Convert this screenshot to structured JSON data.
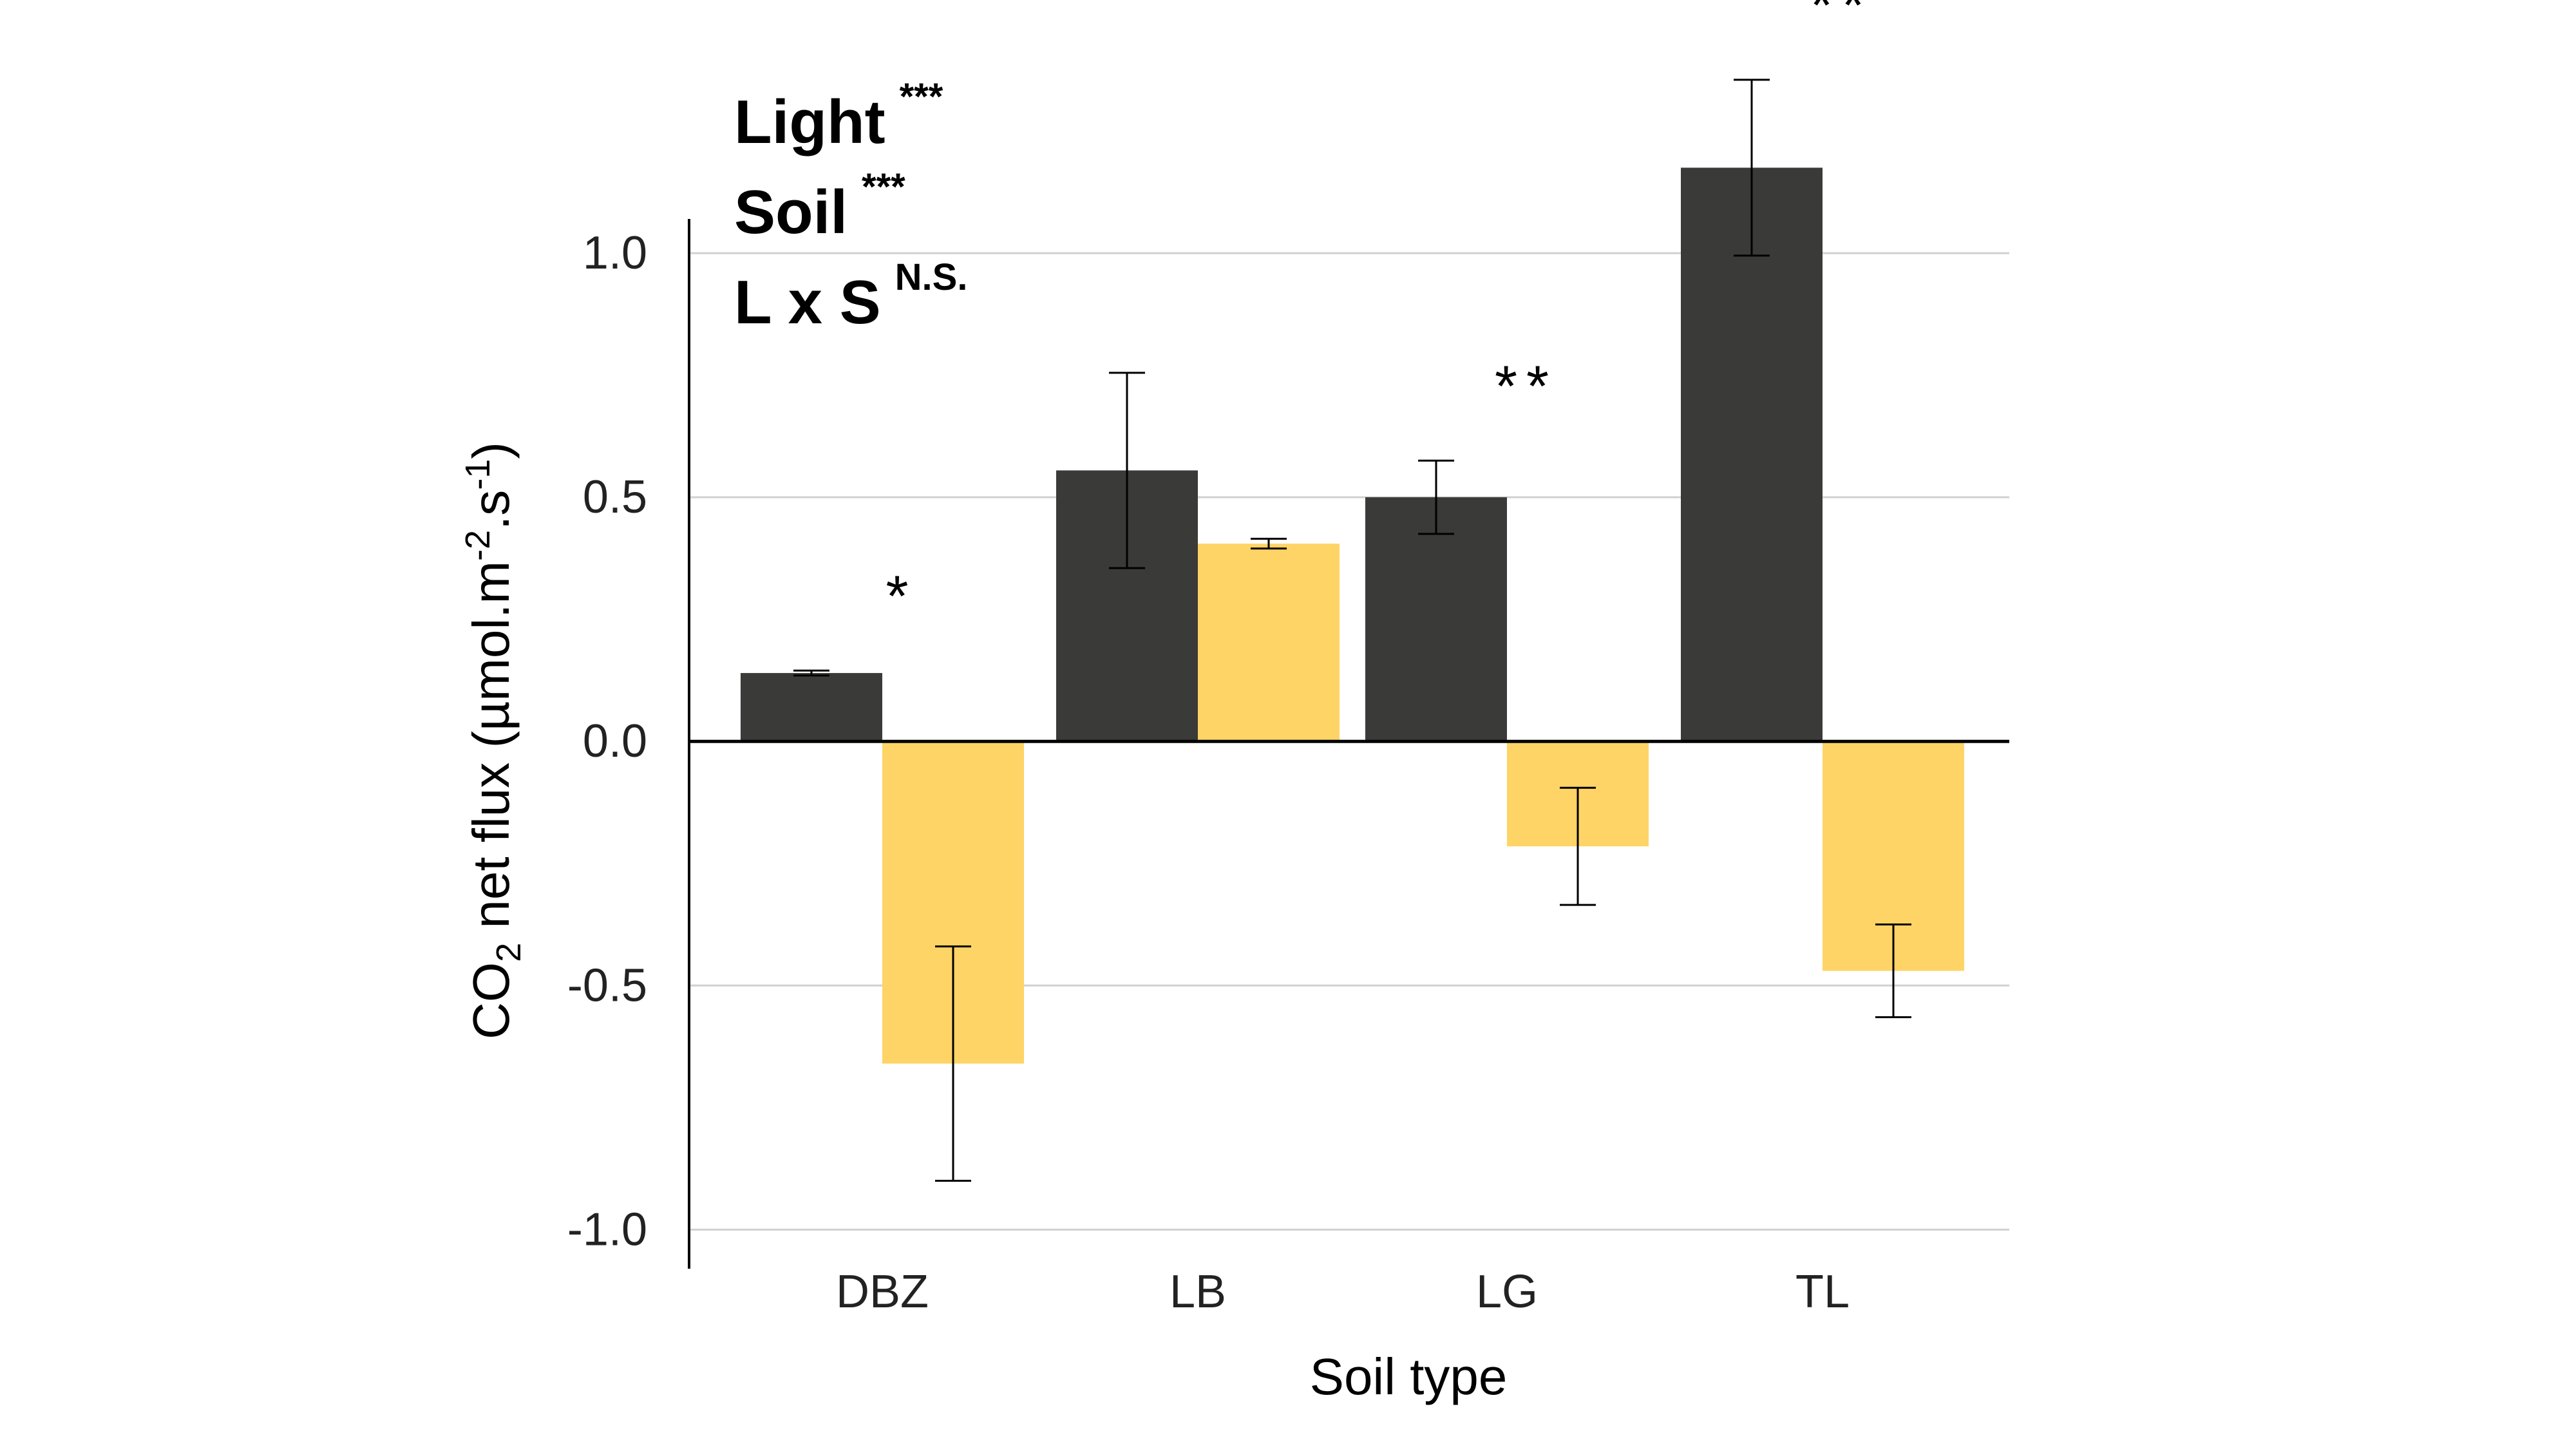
{
  "chart_data": {
    "type": "bar",
    "categories": [
      "DBZ",
      "LB",
      "LG",
      "TL"
    ],
    "series": [
      {
        "values": [
          0.14,
          0.555,
          0.5,
          1.175
        ],
        "errors": [
          0.005,
          0.2,
          0.075,
          0.18
        ],
        "color": "#3a3a38"
      },
      {
        "values": [
          -0.66,
          0.405,
          -0.215,
          -0.47
        ],
        "errors": [
          0.24,
          0.01,
          0.12,
          0.095
        ],
        "color": "#ffd466"
      }
    ],
    "significance": [
      "*",
      "",
      "**",
      "**"
    ],
    "xlabel": "Soil type",
    "ylabel_main": "CO",
    "ylabel_sub": "2",
    "ylabel_rest1": " net flux (µmol.m",
    "ylabel_sup1": "-2",
    "ylabel_rest2": ".s",
    "ylabel_sup2": "-1",
    "ylabel_end": ")",
    "yticks": [
      "1.0",
      "0.5",
      "0.0",
      "-0.5",
      "-1.0"
    ],
    "ytick_values": [
      1.0,
      0.5,
      0.0,
      -0.5,
      -1.0
    ],
    "ylim": [
      -1.08,
      1.07
    ],
    "grid": true,
    "stats": [
      {
        "label": "Light",
        "sig": "***"
      },
      {
        "label": "Soil",
        "sig": "***"
      },
      {
        "label": "L x S",
        "sig": "N.S."
      }
    ]
  }
}
